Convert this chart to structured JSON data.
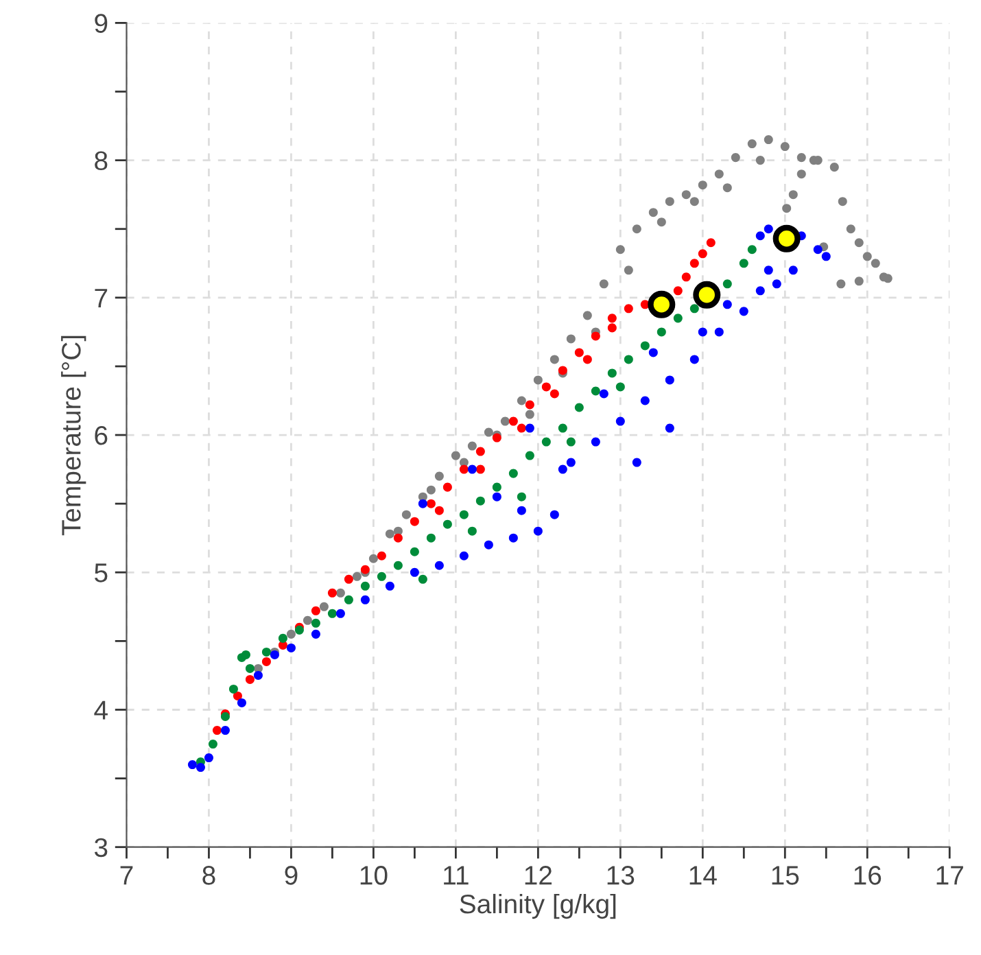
{
  "chart_data": {
    "type": "scatter",
    "xlabel": "Salinity [g/kg]",
    "ylabel": "Temperature [°C]",
    "xlim": [
      7,
      17
    ],
    "ylim": [
      3,
      9
    ],
    "xticks": [
      7,
      {
        "value": 7.5,
        "label": null
      },
      8,
      {
        "value": 8.5,
        "label": null
      },
      9,
      {
        "value": 9.5,
        "label": null
      },
      10,
      {
        "value": 10.5,
        "label": null
      },
      11,
      {
        "value": 11.5,
        "label": null
      },
      12,
      {
        "value": 12.5,
        "label": null
      },
      13,
      {
        "value": 13.5,
        "label": null
      },
      14,
      {
        "value": 14.5,
        "label": null
      },
      15,
      {
        "value": 15.5,
        "label": null
      },
      16,
      {
        "value": 16.5,
        "label": null
      },
      17
    ],
    "yticks": [
      3,
      {
        "value": 3.5,
        "label": null
      },
      4,
      {
        "value": 4.5,
        "label": null
      },
      5,
      {
        "value": 5.5,
        "label": null
      },
      6,
      {
        "value": 6.5,
        "label": null
      },
      7,
      {
        "value": 7.5,
        "label": null
      },
      8,
      {
        "value": 8.5,
        "label": null
      },
      9
    ],
    "grid": true,
    "marker": "circle",
    "series": [
      {
        "color": "#808080",
        "x": [
          8.6,
          8.8,
          9.0,
          9.2,
          9.4,
          9.6,
          9.8,
          10.0,
          10.2,
          10.4,
          10.6,
          10.8,
          11.0,
          11.2,
          11.4,
          11.6,
          11.8,
          12.0,
          12.2,
          12.4,
          12.6,
          12.8,
          13.0,
          13.2,
          13.4,
          13.6,
          13.8,
          14.0,
          14.2,
          14.4,
          14.6,
          14.8,
          15.0,
          15.2,
          15.4,
          15.6,
          15.7,
          15.8,
          15.9,
          16.0,
          16.1,
          16.2,
          15.02,
          15.1,
          15.35,
          15.47,
          15.68,
          15.9,
          16.25,
          9.9,
          10.3,
          10.7,
          11.1,
          11.5,
          11.9,
          12.3,
          12.7,
          13.1,
          13.5,
          13.9,
          14.3,
          14.7,
          15.2
        ],
        "values": [
          4.3,
          4.42,
          4.55,
          4.65,
          4.75,
          4.85,
          4.97,
          5.1,
          5.28,
          5.42,
          5.55,
          5.7,
          5.85,
          5.92,
          6.02,
          6.1,
          6.25,
          6.4,
          6.55,
          6.7,
          6.87,
          7.1,
          7.35,
          7.5,
          7.62,
          7.7,
          7.75,
          7.82,
          7.9,
          8.02,
          8.12,
          8.15,
          8.1,
          8.02,
          8.0,
          7.95,
          7.7,
          7.5,
          7.4,
          7.3,
          7.25,
          7.15,
          7.65,
          7.75,
          8.0,
          7.37,
          7.1,
          7.12,
          7.14,
          5.0,
          5.3,
          5.6,
          5.8,
          6.0,
          6.15,
          6.45,
          6.75,
          7.2,
          7.55,
          7.7,
          7.8,
          8.0,
          7.9
        ]
      },
      {
        "color": "#ff0000",
        "x": [
          8.1,
          8.2,
          8.35,
          8.5,
          8.7,
          8.9,
          9.1,
          9.3,
          9.5,
          9.7,
          9.9,
          10.1,
          10.3,
          10.5,
          10.7,
          10.9,
          11.1,
          11.3,
          11.5,
          11.7,
          11.9,
          12.1,
          12.3,
          12.5,
          12.7,
          12.9,
          13.1,
          13.3,
          13.7,
          13.8,
          13.9,
          14.0,
          14.1,
          10.8,
          11.3,
          11.8,
          12.2,
          12.6,
          12.9
        ],
        "values": [
          3.85,
          3.97,
          4.1,
          4.22,
          4.35,
          4.47,
          4.6,
          4.72,
          4.85,
          4.95,
          5.02,
          5.12,
          5.25,
          5.37,
          5.5,
          5.62,
          5.75,
          5.88,
          5.98,
          6.1,
          6.22,
          6.35,
          6.47,
          6.6,
          6.72,
          6.85,
          6.92,
          6.95,
          7.05,
          7.15,
          7.25,
          7.32,
          7.4,
          5.45,
          5.75,
          6.05,
          6.3,
          6.55,
          6.78
        ]
      },
      {
        "color": "#008c3a",
        "x": [
          7.9,
          8.05,
          8.2,
          8.3,
          8.4,
          8.45,
          8.5,
          8.7,
          8.9,
          9.1,
          9.3,
          9.5,
          9.7,
          9.9,
          10.1,
          10.3,
          10.5,
          10.7,
          10.9,
          11.1,
          11.3,
          11.5,
          11.7,
          11.9,
          12.1,
          12.3,
          12.5,
          12.7,
          12.9,
          13.1,
          13.3,
          13.5,
          13.7,
          13.9,
          14.3,
          14.5,
          14.6,
          10.6,
          11.2,
          11.8,
          12.4,
          13.0
        ],
        "values": [
          3.62,
          3.75,
          3.95,
          4.15,
          4.38,
          4.4,
          4.3,
          4.42,
          4.52,
          4.58,
          4.63,
          4.7,
          4.8,
          4.9,
          4.97,
          5.05,
          5.15,
          5.25,
          5.35,
          5.42,
          5.52,
          5.62,
          5.72,
          5.85,
          5.95,
          6.05,
          6.2,
          6.32,
          6.45,
          6.55,
          6.65,
          6.75,
          6.85,
          6.92,
          7.1,
          7.25,
          7.35,
          4.95,
          5.3,
          5.55,
          5.95,
          6.35
        ]
      },
      {
        "color": "#0000ff",
        "x": [
          7.8,
          7.9,
          8.0,
          8.2,
          8.4,
          8.6,
          8.8,
          9.0,
          9.3,
          9.6,
          9.9,
          10.2,
          10.5,
          10.8,
          11.1,
          11.4,
          11.7,
          12.0,
          12.2,
          11.8,
          11.5,
          12.4,
          12.7,
          13.0,
          13.3,
          13.6,
          13.9,
          14.2,
          14.5,
          14.7,
          14.8,
          14.7,
          14.8,
          15.2,
          15.4,
          15.5,
          15.1,
          14.9,
          13.2,
          13.6,
          12.3,
          12.8,
          13.4,
          11.2,
          10.6,
          14.3,
          14.0,
          11.9
        ],
        "values": [
          3.6,
          3.58,
          3.65,
          3.85,
          4.05,
          4.25,
          4.4,
          4.45,
          4.55,
          4.7,
          4.8,
          4.9,
          5.0,
          5.05,
          5.12,
          5.2,
          5.25,
          5.3,
          5.42,
          5.45,
          5.55,
          5.8,
          5.95,
          6.1,
          6.25,
          6.4,
          6.55,
          6.75,
          6.9,
          7.05,
          7.2,
          7.45,
          7.5,
          7.45,
          7.35,
          7.3,
          7.2,
          7.1,
          5.8,
          6.05,
          5.75,
          6.3,
          6.6,
          5.75,
          5.5,
          6.95,
          6.75,
          6.05
        ]
      },
      {
        "color": "#ffff00",
        "x": [
          13.5,
          14.05,
          15.02
        ],
        "values": [
          6.95,
          7.02,
          7.43
        ]
      }
    ]
  }
}
